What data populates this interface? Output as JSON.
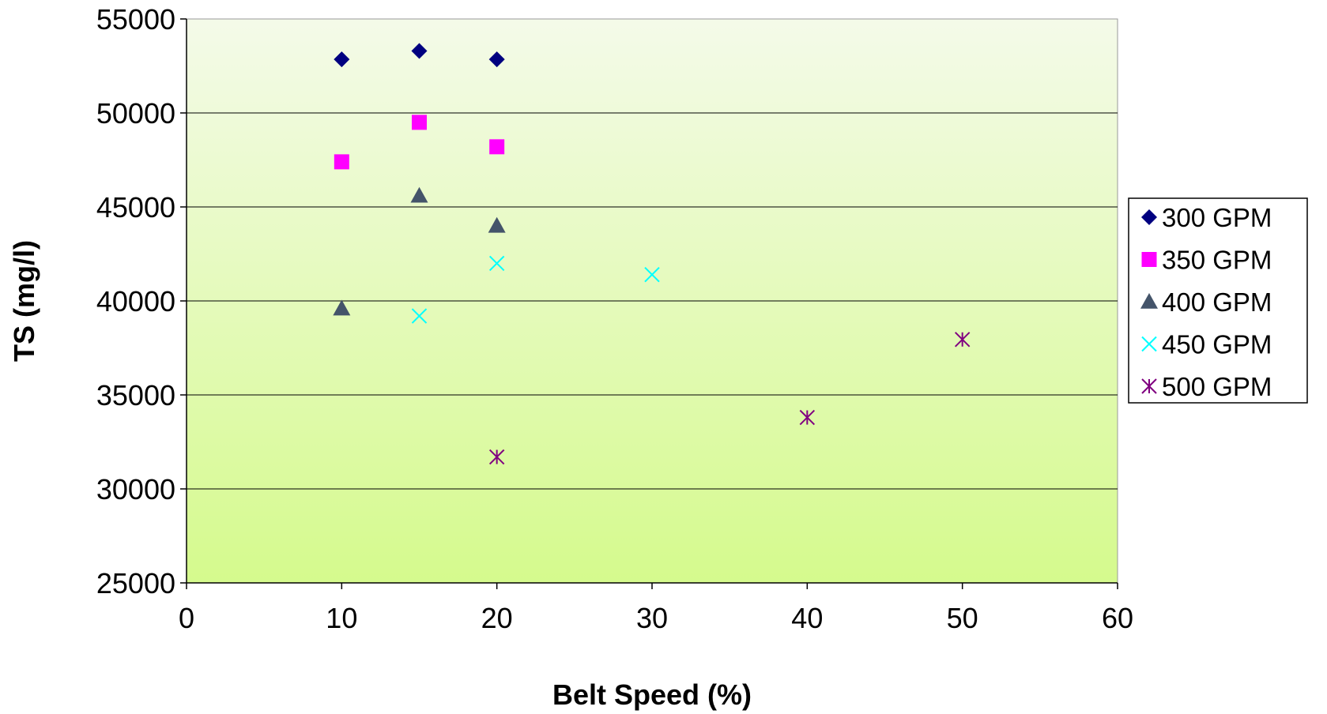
{
  "chart_data": {
    "type": "scatter",
    "title": "",
    "xlabel": "Belt Speed (%)",
    "ylabel": "TS (mg/l)",
    "xlim": [
      0,
      60
    ],
    "ylim": [
      25000,
      55000
    ],
    "x_ticks": [
      0,
      10,
      20,
      30,
      40,
      50,
      60
    ],
    "y_ticks": [
      25000,
      30000,
      35000,
      40000,
      45000,
      50000,
      55000
    ],
    "grid": "horizontal",
    "legend_position": "right",
    "background": "green gradient",
    "series": [
      {
        "name": "300 GPM",
        "marker": "diamond",
        "color": "#000080",
        "points": [
          [
            10,
            52850
          ],
          [
            15,
            53300
          ],
          [
            20,
            52850
          ]
        ]
      },
      {
        "name": "350 GPM",
        "marker": "square",
        "color": "#FF00FF",
        "points": [
          [
            10,
            47400
          ],
          [
            15,
            49500
          ],
          [
            20,
            48200
          ]
        ]
      },
      {
        "name": "400 GPM",
        "marker": "triangle",
        "color": "#44546A",
        "points": [
          [
            10,
            39600
          ],
          [
            15,
            45600
          ],
          [
            20,
            44000
          ]
        ]
      },
      {
        "name": "450 GPM",
        "marker": "x",
        "color": "#00FFFF",
        "points": [
          [
            15,
            39200
          ],
          [
            20,
            42000
          ],
          [
            30,
            41400
          ]
        ]
      },
      {
        "name": "500 GPM",
        "marker": "star",
        "color": "#800080",
        "points": [
          [
            20,
            31700
          ],
          [
            40,
            33800
          ],
          [
            50,
            37950
          ]
        ]
      }
    ]
  }
}
